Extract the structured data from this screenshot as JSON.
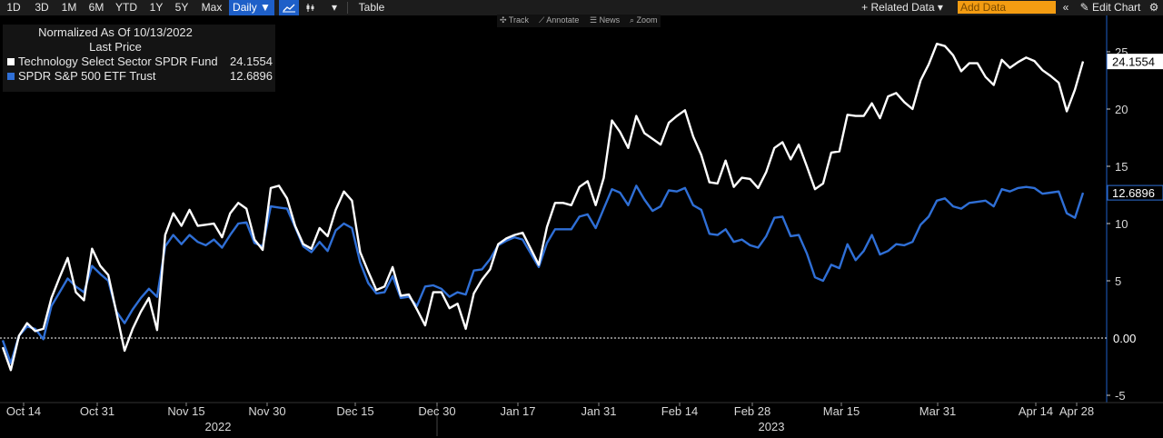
{
  "toolbar": {
    "ranges": [
      "1D",
      "3D",
      "1M",
      "6M",
      "YTD",
      "1Y",
      "5Y",
      "Max"
    ],
    "period": "Daily ▼",
    "line_icon": "line-chart-icon",
    "candle_icon": "candlestick-icon",
    "dropdown_icon": "▾",
    "table_label": "Table",
    "related_label": "+ Related Data ▾",
    "add_data_placeholder": "Add Data",
    "collapse_icon": "«",
    "edit_label": "✎ Edit Chart",
    "settings_icon": "⚙"
  },
  "subbar": {
    "track": "✣ Track",
    "annotate": "⟋ Annotate",
    "news": "☰ News",
    "zoom": "⌕ Zoom"
  },
  "legend": {
    "line1": "Normalized As Of 10/13/2022",
    "line2": "Last Price",
    "series": [
      {
        "name": "Technology Select Sector SPDR Fund",
        "value": "24.1554",
        "color": "#ffffff"
      },
      {
        "name": "SPDR S&P 500 ETF Trust",
        "value": "12.6896",
        "color": "#2f6fd6"
      }
    ]
  },
  "chart_data": {
    "type": "line",
    "x_ticks": [
      "Oct 14",
      "Oct 31",
      "Nov 15",
      "Nov 30",
      "Dec 15",
      "Dec 30",
      "Jan 17",
      "Jan 31",
      "Feb 14",
      "Feb 28",
      "Mar 15",
      "Mar 31",
      "Apr 14",
      "Apr 28"
    ],
    "year_labels": [
      "2022",
      "2023"
    ],
    "y_ticks": [
      -5,
      0,
      5,
      10,
      15,
      20,
      25
    ],
    "ylim": [
      -6,
      28
    ],
    "zero_label": "0.00",
    "series": [
      {
        "name": "Technology Select Sector SPDR Fund",
        "color": "#ffffff",
        "last_label": "24.1554",
        "values": [
          -0.8,
          -2.8,
          0.2,
          1.3,
          0.6,
          0.8,
          3.5,
          5.3,
          7.0,
          4.0,
          3.3,
          7.8,
          6.3,
          5.5,
          2.2,
          -1.1,
          0.8,
          2.3,
          3.5,
          0.7,
          9.0,
          10.9,
          9.8,
          11.2,
          9.8,
          9.9,
          10.0,
          8.8,
          10.9,
          11.8,
          11.3,
          8.6,
          7.7,
          13.1,
          13.3,
          12.2,
          9.8,
          8.2,
          7.8,
          9.6,
          8.9,
          11.2,
          12.8,
          12.0,
          7.5,
          5.8,
          4.2,
          4.5,
          6.2,
          3.7,
          3.8,
          2.5,
          1.1,
          4.0,
          4.0,
          2.6,
          3.0,
          0.8,
          3.9,
          5.1,
          6.0,
          8.2,
          8.7,
          9.0,
          9.2,
          7.8,
          6.4,
          9.7,
          11.8,
          11.8,
          11.6,
          13.2,
          13.7,
          11.6,
          14.0,
          19.0,
          18.0,
          16.6,
          19.4,
          17.9,
          17.4,
          16.9,
          18.8,
          19.4,
          19.9,
          17.6,
          16.0,
          13.6,
          13.5,
          15.5,
          13.2,
          14.0,
          13.9,
          13.1,
          14.5,
          16.6,
          17.1,
          15.6,
          16.9,
          15.0,
          13.0,
          13.5,
          16.2,
          16.3,
          19.5,
          19.4,
          19.4,
          20.5,
          19.2,
          21.1,
          21.4,
          20.6,
          20.0,
          22.5,
          23.9,
          25.7,
          25.5,
          24.7,
          23.3,
          24.0,
          24.0,
          22.8,
          22.1,
          24.3,
          23.6,
          24.1,
          24.5,
          24.2,
          23.4,
          22.9,
          22.3,
          19.8,
          21.7,
          24.1554
        ]
      },
      {
        "name": "SPDR S&P 500 ETF Trust",
        "color": "#2f6fd6",
        "last_label": "12.6896",
        "values": [
          -0.2,
          -2.2,
          0.2,
          1.0,
          0.8,
          -0.1,
          2.8,
          4.0,
          5.2,
          4.5,
          4.0,
          6.3,
          5.6,
          5.0,
          2.3,
          1.3,
          2.5,
          3.5,
          4.3,
          3.6,
          8.0,
          9.0,
          8.2,
          9.0,
          8.4,
          8.1,
          8.6,
          7.9,
          9.0,
          10.0,
          10.1,
          8.3,
          8.0,
          11.5,
          11.4,
          11.3,
          9.7,
          8.0,
          7.5,
          8.4,
          7.6,
          9.4,
          10.0,
          9.6,
          6.6,
          4.8,
          3.9,
          4.0,
          5.4,
          3.5,
          3.6,
          2.8,
          4.5,
          4.6,
          4.3,
          3.6,
          4.0,
          3.8,
          5.9,
          6.0,
          6.9,
          8.1,
          8.5,
          8.8,
          8.6,
          7.4,
          6.2,
          8.3,
          9.5,
          9.5,
          9.5,
          10.6,
          10.8,
          9.6,
          11.3,
          13.0,
          12.7,
          11.6,
          13.3,
          12.1,
          11.1,
          11.5,
          12.9,
          12.8,
          13.1,
          11.6,
          11.2,
          9.1,
          9.0,
          9.5,
          8.4,
          8.6,
          8.1,
          7.9,
          8.9,
          10.5,
          10.6,
          8.9,
          9.0,
          7.4,
          5.3,
          5.0,
          6.4,
          6.1,
          8.2,
          6.8,
          7.6,
          9.0,
          7.3,
          7.6,
          8.2,
          8.1,
          8.4,
          9.9,
          10.6,
          12.0,
          12.2,
          11.5,
          11.3,
          11.8,
          11.9,
          12.0,
          11.5,
          13.0,
          12.8,
          13.1,
          13.2,
          13.1,
          12.6,
          12.7,
          12.8,
          10.9,
          10.5,
          12.6896
        ]
      }
    ]
  }
}
